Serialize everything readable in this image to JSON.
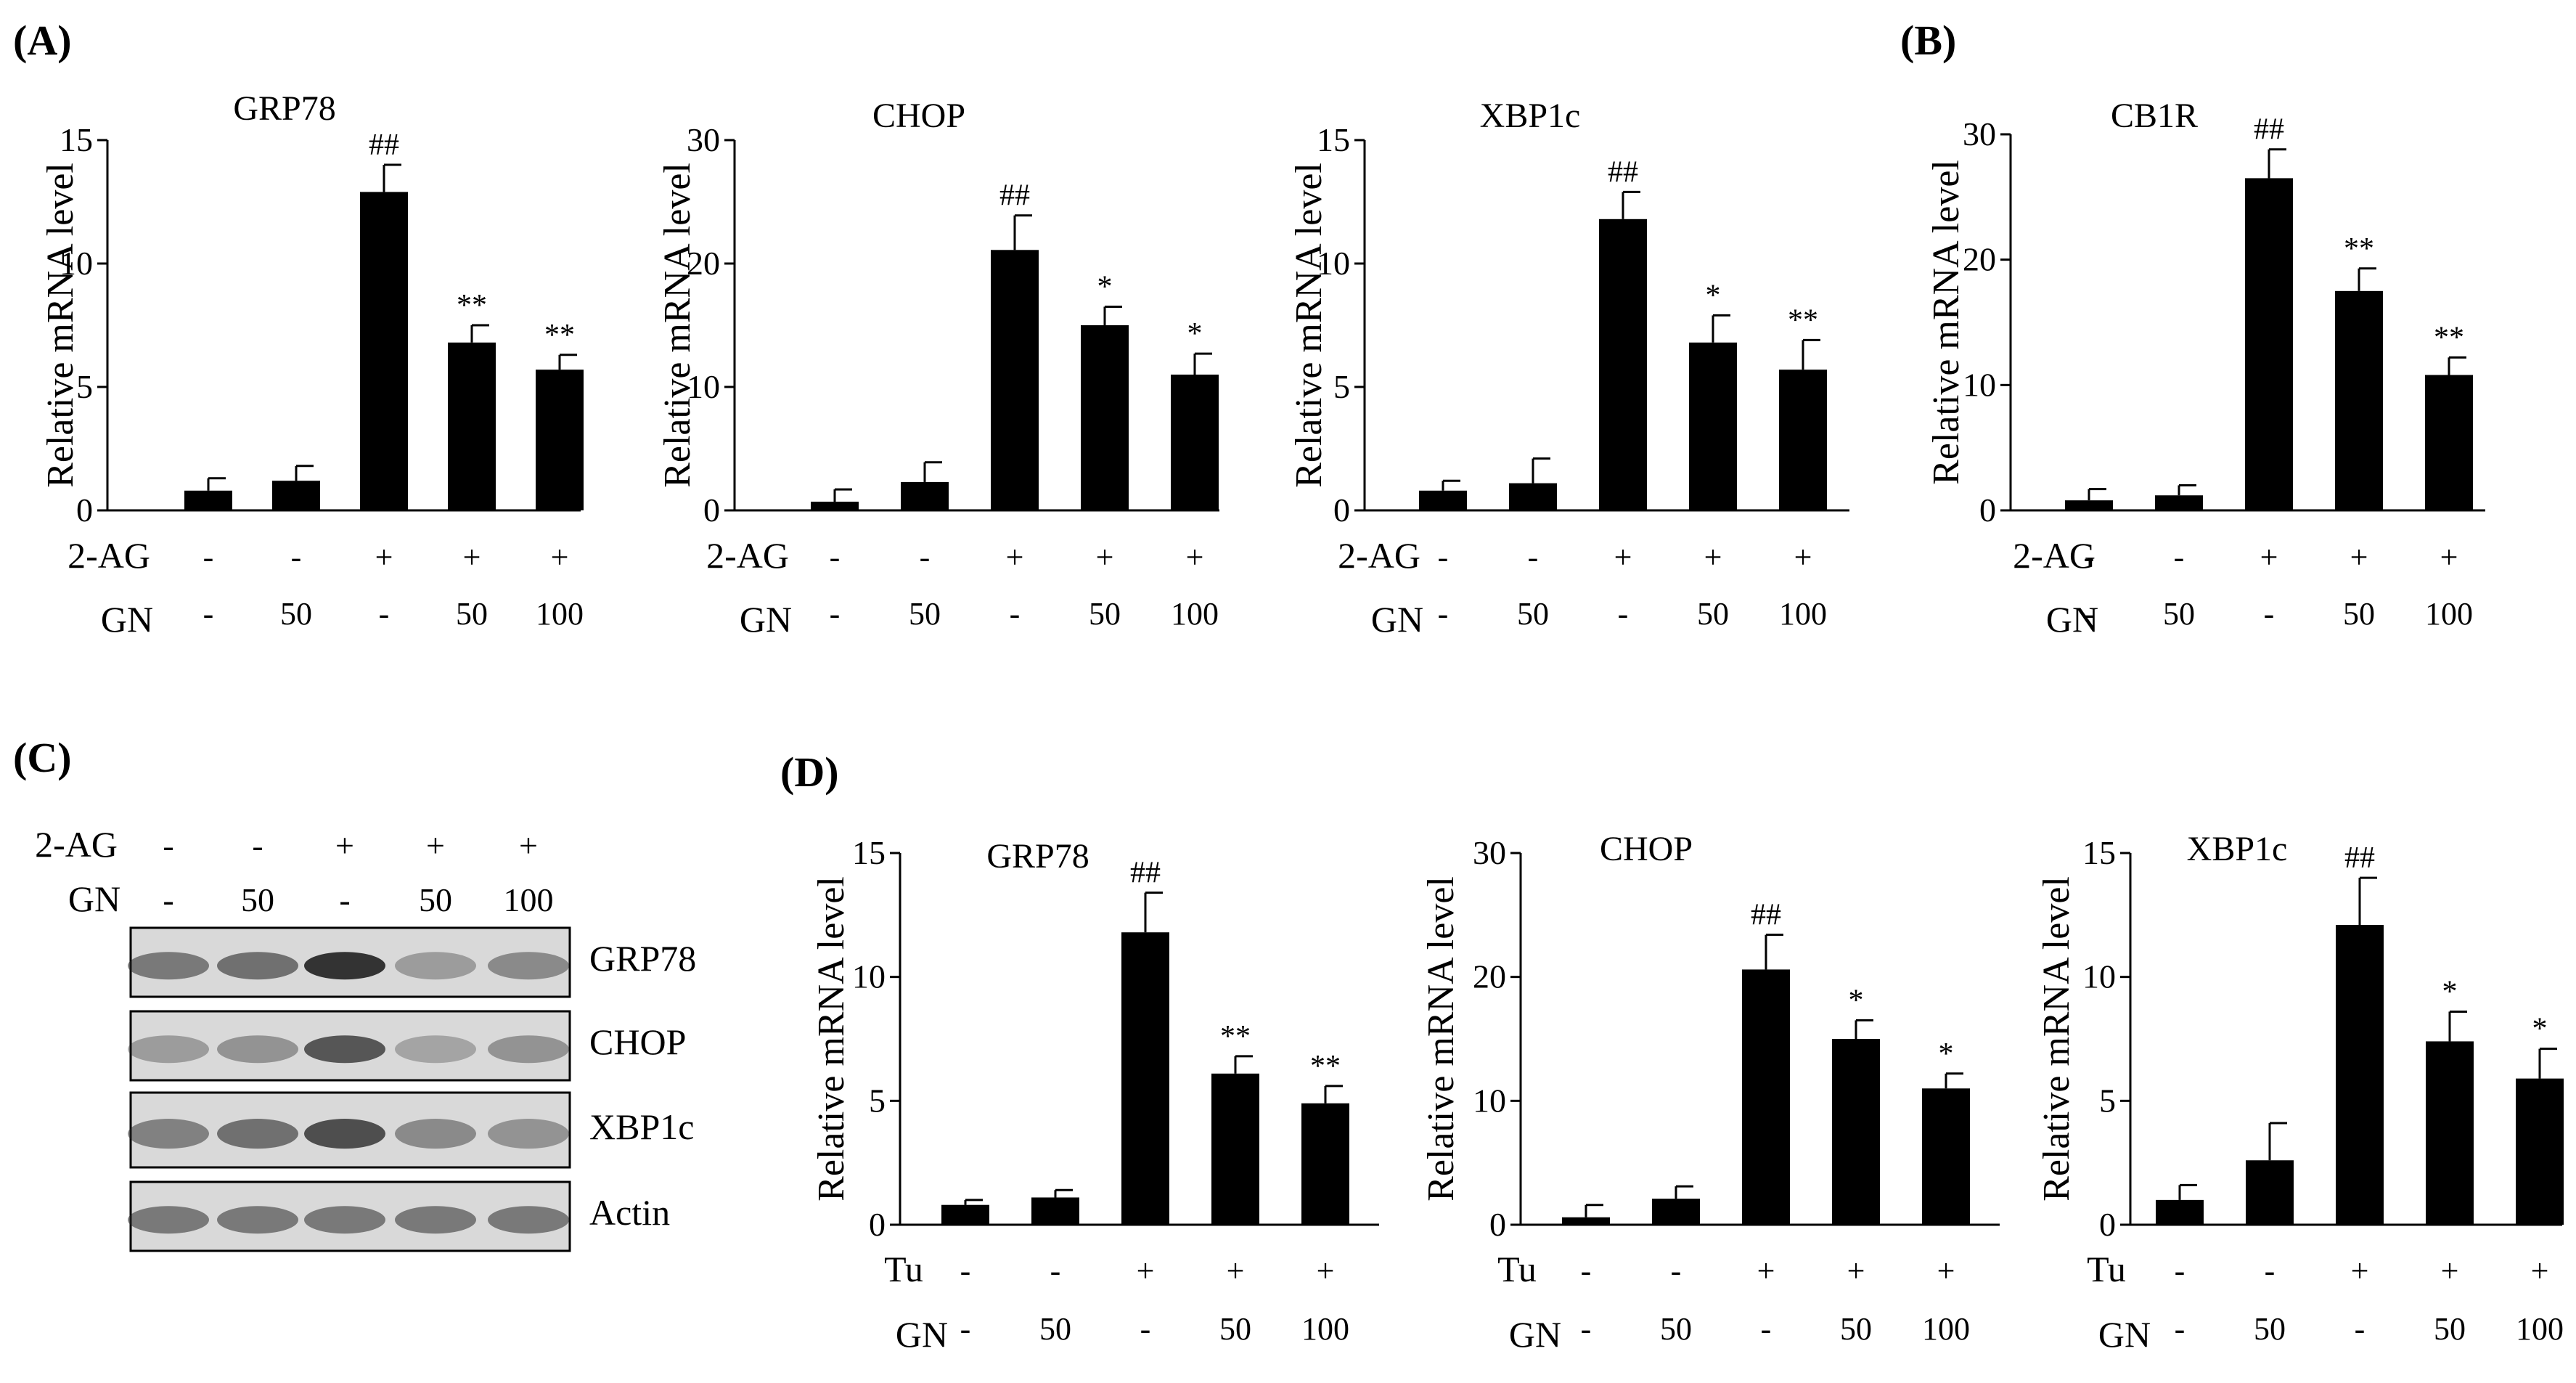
{
  "panel_labels": {
    "a": "(A)",
    "b": "(B)",
    "c": "(C)",
    "d": "(D)"
  },
  "colors": {
    "bar": "#000000",
    "axis": "#000000",
    "background": "#ffffff"
  },
  "chart_data": [
    {
      "id": "A1",
      "panel": "A",
      "type": "bar",
      "title": "GRP78",
      "ylabel": "Relative mRNA level",
      "ylim": [
        0,
        15
      ],
      "yticks": [
        0,
        5,
        10,
        15
      ],
      "values": [
        0.8,
        1.2,
        12.9,
        6.8,
        5.7
      ],
      "errors": [
        0.5,
        0.6,
        1.1,
        0.7,
        0.6
      ],
      "annotations": [
        "",
        "",
        "##",
        "**",
        "**"
      ],
      "treatment_label": "2-AG",
      "treatment_row": [
        "-",
        "-",
        "+",
        "+",
        "+"
      ],
      "dose_label": "GN",
      "dose_row": [
        "-",
        "50",
        "-",
        "50",
        "100"
      ]
    },
    {
      "id": "A2",
      "panel": "A",
      "type": "bar",
      "title": "CHOP",
      "ylabel": "Relative mRNA level",
      "ylim": [
        0,
        30
      ],
      "yticks": [
        0,
        10,
        20,
        30
      ],
      "values": [
        0.7,
        2.3,
        21.1,
        15.0,
        11.0
      ],
      "errors": [
        1.0,
        1.6,
        2.8,
        1.5,
        1.7
      ],
      "annotations": [
        "",
        "",
        "##",
        "*",
        "*"
      ],
      "treatment_label": "2-AG",
      "treatment_row": [
        "-",
        "-",
        "+",
        "+",
        "+"
      ],
      "dose_label": "GN",
      "dose_row": [
        "-",
        "50",
        "-",
        "50",
        "100"
      ]
    },
    {
      "id": "A3",
      "panel": "A",
      "type": "bar",
      "title": "XBP1c",
      "ylabel": "Relative mRNA level",
      "ylim": [
        0,
        15
      ],
      "yticks": [
        0,
        5,
        10,
        15
      ],
      "values": [
        0.8,
        1.1,
        11.8,
        6.8,
        5.7
      ],
      "errors": [
        0.4,
        1.0,
        1.1,
        1.1,
        1.2
      ],
      "annotations": [
        "",
        "",
        "##",
        "*",
        "**"
      ],
      "treatment_label": "2-AG",
      "treatment_row": [
        "-",
        "-",
        "+",
        "+",
        "+"
      ],
      "dose_label": "GN",
      "dose_row": [
        "-",
        "50",
        "-",
        "50",
        "100"
      ]
    },
    {
      "id": "B1",
      "panel": "B",
      "type": "bar",
      "title": "CB1R",
      "ylabel": "Relative mRNA level",
      "ylim": [
        0,
        30
      ],
      "yticks": [
        0,
        10,
        20,
        30
      ],
      "values": [
        0.8,
        1.2,
        26.5,
        17.5,
        10.8
      ],
      "errors": [
        0.9,
        0.8,
        2.3,
        1.8,
        1.4
      ],
      "annotations": [
        "",
        "",
        "##",
        "**",
        "**"
      ],
      "treatment_label": "2-AG",
      "treatment_row": [
        "-",
        "-",
        "+",
        "+",
        "+"
      ],
      "dose_label": "GN",
      "dose_row": [
        "-",
        "50",
        "-",
        "50",
        "100"
      ]
    },
    {
      "id": "D1",
      "panel": "D",
      "type": "bar",
      "title": "GRP78",
      "ylabel": "Relative mRNA level",
      "ylim": [
        0,
        15
      ],
      "yticks": [
        0,
        5,
        10,
        15
      ],
      "values": [
        0.8,
        1.1,
        11.8,
        6.1,
        4.9
      ],
      "errors": [
        0.2,
        0.3,
        1.6,
        0.7,
        0.7
      ],
      "annotations": [
        "",
        "",
        "##",
        "**",
        "**"
      ],
      "treatment_label": "Tu",
      "treatment_row": [
        "-",
        "-",
        "+",
        "+",
        "+"
      ],
      "dose_label": "GN",
      "dose_row": [
        "-",
        "50",
        "-",
        "50",
        "100"
      ]
    },
    {
      "id": "D2",
      "panel": "D",
      "type": "bar",
      "title": "CHOP",
      "ylabel": "Relative mRNA level",
      "ylim": [
        0,
        30
      ],
      "yticks": [
        0,
        10,
        20,
        30
      ],
      "values": [
        0.6,
        2.1,
        20.6,
        15.0,
        11.0
      ],
      "errors": [
        1.0,
        1.0,
        2.8,
        1.5,
        1.2
      ],
      "annotations": [
        "",
        "",
        "##",
        "*",
        "*"
      ],
      "treatment_label": "Tu",
      "treatment_row": [
        "-",
        "-",
        "+",
        "+",
        "+"
      ],
      "dose_label": "GN",
      "dose_row": [
        "-",
        "50",
        "-",
        "50",
        "100"
      ]
    },
    {
      "id": "D3",
      "panel": "D",
      "type": "bar",
      "title": "XBP1c",
      "ylabel": "Relative mRNA level",
      "ylim": [
        0,
        15
      ],
      "yticks": [
        0,
        5,
        10,
        15
      ],
      "values": [
        1.0,
        2.6,
        12.1,
        7.4,
        5.9
      ],
      "errors": [
        0.6,
        1.5,
        1.9,
        1.2,
        1.2
      ],
      "annotations": [
        "",
        "",
        "##",
        "*",
        "*"
      ],
      "treatment_label": "Tu",
      "treatment_row": [
        "-",
        "-",
        "+",
        "+",
        "+"
      ],
      "dose_label": "GN",
      "dose_row": [
        "-",
        "50",
        "-",
        "50",
        "100"
      ]
    }
  ],
  "western_blot": {
    "treatment_label": "2-AG",
    "treatment_row": [
      "-",
      "-",
      "+",
      "+",
      "+"
    ],
    "dose_label": "GN",
    "dose_row": [
      "-",
      "50",
      "-",
      "50",
      "100"
    ],
    "bands": [
      "GRP78",
      "CHOP",
      "XBP1c",
      "Actin"
    ]
  }
}
